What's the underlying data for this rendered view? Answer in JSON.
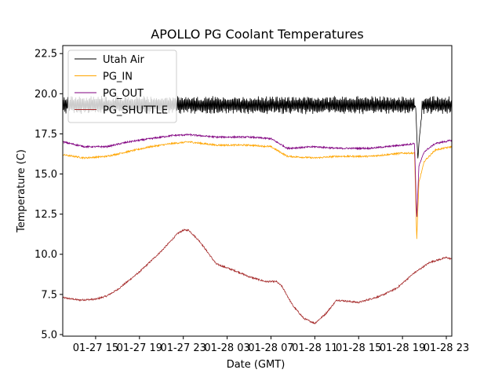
{
  "chart_data": {
    "type": "line",
    "title": "APOLLO PG Coolant Temperatures",
    "xlabel": "Date (GMT)",
    "ylabel": "Temperature (C)",
    "xlim": [
      12,
      47.5
    ],
    "ylim": [
      4.9,
      23.0
    ],
    "yticks": [
      5.0,
      7.5,
      10.0,
      12.5,
      15.0,
      17.5,
      20.0,
      22.5
    ],
    "ytick_labels": [
      "5.0",
      "7.5",
      "10.0",
      "12.5",
      "15.0",
      "17.5",
      "20.0",
      "22.5"
    ],
    "xticks": [
      15,
      19,
      23,
      27,
      31,
      35,
      39,
      43,
      47
    ],
    "xtick_labels": [
      "01-27 15",
      "01-27 19",
      "01-27 23",
      "01-28 03",
      "01-28 07",
      "01-28 11",
      "01-28 15",
      "01-28 19",
      "01-28 23"
    ],
    "legend_position": "top-left",
    "series": [
      {
        "name": "Utah Air",
        "color": "#000000",
        "x": [
          12,
          16,
          20,
          24,
          28,
          32,
          36,
          40,
          42,
          43.5,
          44.2,
          44.4,
          44.8,
          46,
          47.5
        ],
        "y": [
          19.3,
          19.3,
          19.3,
          19.3,
          19.3,
          19.3,
          19.3,
          19.3,
          19.3,
          19.3,
          19.3,
          16.0,
          19.3,
          19.3,
          19.3
        ],
        "amplitude": 0.45
      },
      {
        "name": "PG_IN",
        "color": "#ffa500",
        "x": [
          12,
          14,
          16,
          18,
          20,
          22,
          23.5,
          26,
          29,
          31,
          32.5,
          35,
          37,
          40,
          43,
          44.1,
          44.3,
          44.5,
          45,
          46,
          47.5
        ],
        "y": [
          16.2,
          16.0,
          16.1,
          16.4,
          16.7,
          16.9,
          17.0,
          16.8,
          16.8,
          16.7,
          16.1,
          16.0,
          16.1,
          16.1,
          16.3,
          16.3,
          10.9,
          14.5,
          15.8,
          16.5,
          16.7
        ],
        "amplitude": 0.05
      },
      {
        "name": "PG_OUT",
        "color": "#800080",
        "x": [
          12,
          14,
          16,
          18,
          20,
          22,
          23.5,
          26,
          29,
          31,
          32.5,
          35,
          37,
          40,
          43,
          44.1,
          44.3,
          44.5,
          45,
          46,
          47.5
        ],
        "y": [
          17.0,
          16.7,
          16.7,
          17.0,
          17.2,
          17.4,
          17.45,
          17.3,
          17.3,
          17.2,
          16.6,
          16.7,
          16.6,
          16.6,
          16.8,
          16.9,
          12.2,
          15.5,
          16.4,
          16.9,
          17.1
        ],
        "amplitude": 0.05
      },
      {
        "name": "PG_SHUTTLE",
        "color": "#a52a2a",
        "x": [
          12,
          13.5,
          15,
          16,
          17,
          19,
          21,
          22.5,
          23,
          23.5,
          24.5,
          26,
          28,
          29,
          30.5,
          31.5,
          32,
          33,
          34,
          35,
          36,
          37,
          39,
          41,
          42.5,
          44,
          45.5,
          47,
          47.5
        ],
        "y": [
          7.3,
          7.15,
          7.2,
          7.4,
          7.8,
          8.9,
          10.2,
          11.3,
          11.5,
          11.5,
          10.8,
          9.4,
          8.9,
          8.6,
          8.3,
          8.3,
          8.0,
          6.8,
          6.0,
          5.7,
          6.3,
          7.15,
          7.0,
          7.4,
          7.9,
          8.8,
          9.5,
          9.8,
          9.7
        ],
        "amplitude": 0.05
      }
    ]
  }
}
